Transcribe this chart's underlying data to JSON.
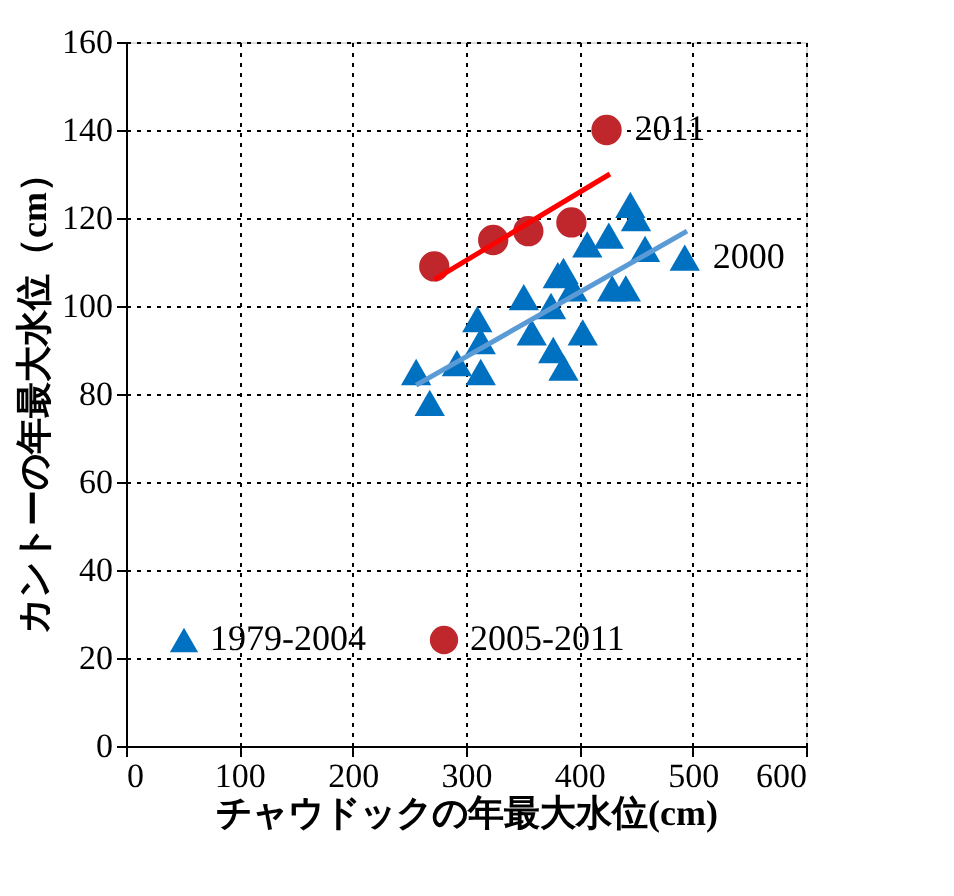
{
  "chart_data": {
    "type": "scatter",
    "xlabel": "チャウドックの年最大水位(cm)",
    "ylabel": "カントーの年最大水位（cm）",
    "xlim": [
      0,
      600
    ],
    "xticks": [
      0,
      100,
      200,
      300,
      400,
      500,
      600
    ],
    "ylim": [
      0,
      160
    ],
    "yticks": [
      0,
      20,
      40,
      60,
      80,
      100,
      120,
      140,
      160
    ],
    "grid": true,
    "legend": "bottom",
    "series": [
      {
        "name": "1979-2004",
        "marker": "triangle",
        "color": "#0070c0",
        "x": [
          256,
          268,
          292,
          310,
          313,
          313,
          351,
          358,
          375,
          381,
          386,
          377,
          386,
          403,
          407,
          394,
          426,
          429,
          441,
          445,
          450,
          458,
          493
        ],
        "values": [
          85,
          78,
          87,
          97,
          92,
          85,
          102,
          94,
          100,
          107,
          108,
          90,
          86,
          94,
          114,
          104,
          116,
          104,
          104,
          123,
          120,
          113,
          111
        ]
      },
      {
        "name": "2005-2011",
        "marker": "circle",
        "color": "#c0272d",
        "x": [
          272,
          324,
          355,
          393,
          424
        ],
        "values": [
          109,
          115,
          117,
          119,
          140
        ]
      },
      {
        "type": "line",
        "marker": "none",
        "color": "#5b9bd5",
        "x": [
          256,
          495
        ],
        "values": [
          82,
          117
        ]
      },
      {
        "type": "line",
        "marker": "none",
        "color": "#ff0000",
        "x": [
          272,
          427
        ],
        "values": [
          106,
          130
        ]
      }
    ],
    "annotations": [
      {
        "text": "2011",
        "x": 424,
        "y": 140
      },
      {
        "text": "2000",
        "x": 493,
        "y": 111
      }
    ]
  }
}
